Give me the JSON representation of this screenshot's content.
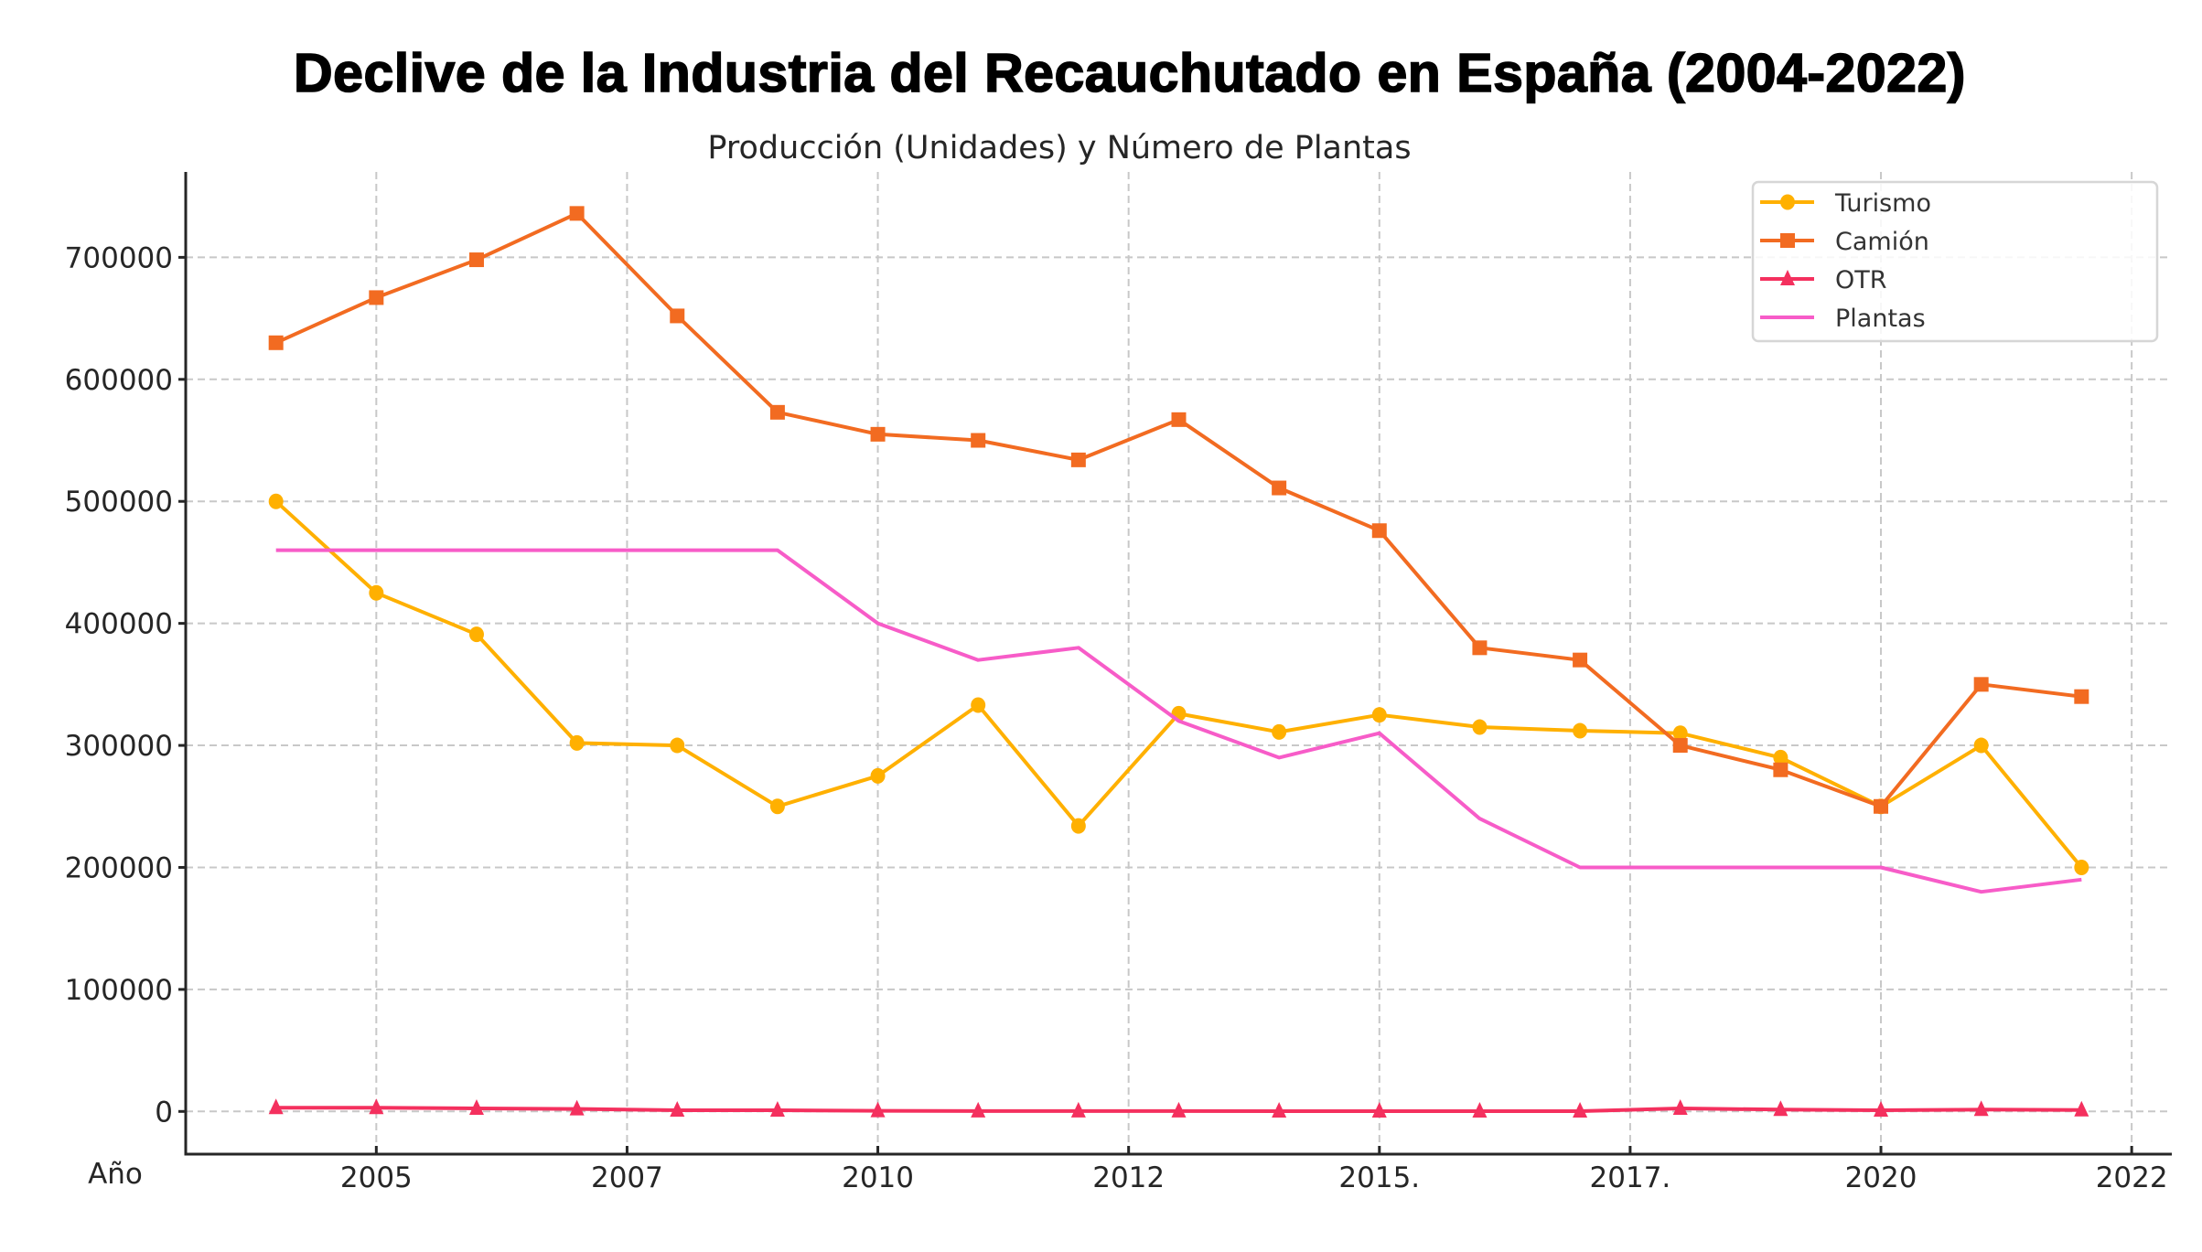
{
  "title": "Declive de la Industria del Recauchutado en España (2004-2022)",
  "subtitle": "Producción (Unidades) y Número de Plantas",
  "chart_data": {
    "type": "line",
    "title": "Declive de la Industria del Recauchutado en España (2004-2022)",
    "subtitle": "Producción (Unidades) y Número de Plantas",
    "xlabel": "Año",
    "ylabel": "",
    "x": [
      2004,
      2005,
      2006,
      2007,
      2008,
      2009,
      2010,
      2011,
      2012,
      2013,
      2014,
      2015,
      2016,
      2017,
      2018,
      2019,
      2020,
      2021,
      2022
    ],
    "xlim": [
      2003.1,
      2022.9
    ],
    "ylim": [
      -35000,
      770000
    ],
    "x_ticks": [
      {
        "value": 2005,
        "label": "2005"
      },
      {
        "value": 2007.5,
        "label": "2007"
      },
      {
        "value": 2010,
        "label": "2010"
      },
      {
        "value": 2012.5,
        "label": "2012"
      },
      {
        "value": 2015,
        "label": "2015."
      },
      {
        "value": 2017.5,
        "label": "2017."
      },
      {
        "value": 2020,
        "label": "2020"
      },
      {
        "value": 2022.5,
        "label": "2022"
      }
    ],
    "y_ticks": [
      {
        "value": 0,
        "label": "0"
      },
      {
        "value": 100000,
        "label": "100000"
      },
      {
        "value": 200000,
        "label": "200000"
      },
      {
        "value": 300000,
        "label": "300000"
      },
      {
        "value": 400000,
        "label": "400000"
      },
      {
        "value": 500000,
        "label": "500000"
      },
      {
        "value": 600000,
        "label": "600000"
      },
      {
        "value": 700000,
        "label": "700000"
      }
    ],
    "grid": true,
    "legend_position": "top-right",
    "series": [
      {
        "name": "Turismo",
        "color": "#FFB000",
        "marker": "circle",
        "values": [
          500000,
          425000,
          391000,
          302000,
          300000,
          250000,
          275000,
          333000,
          234000,
          326000,
          311000,
          325000,
          315000,
          312000,
          310000,
          290000,
          250000,
          300000,
          200000
        ]
      },
      {
        "name": "Camión",
        "color": "#F26B21",
        "marker": "square",
        "values": [
          630000,
          667000,
          698000,
          736000,
          652000,
          573000,
          555000,
          550000,
          534000,
          567000,
          511000,
          476000,
          380000,
          370000,
          300000,
          280000,
          250000,
          350000,
          340000
        ]
      },
      {
        "name": "OTR",
        "color": "#F4305E",
        "marker": "triangle",
        "values": [
          3000,
          3000,
          2500,
          2000,
          1000,
          1000,
          500,
          300,
          300,
          300,
          200,
          200,
          200,
          200,
          2500,
          1500,
          1000,
          1500,
          1200
        ]
      },
      {
        "name": "Plantas",
        "color": "#F75CC8",
        "marker": "none",
        "values": [
          460000,
          460000,
          460000,
          460000,
          460000,
          460000,
          400000,
          370000,
          380000,
          320000,
          290000,
          310000,
          240000,
          200000,
          200000,
          200000,
          200000,
          180000,
          190000
        ]
      }
    ]
  }
}
